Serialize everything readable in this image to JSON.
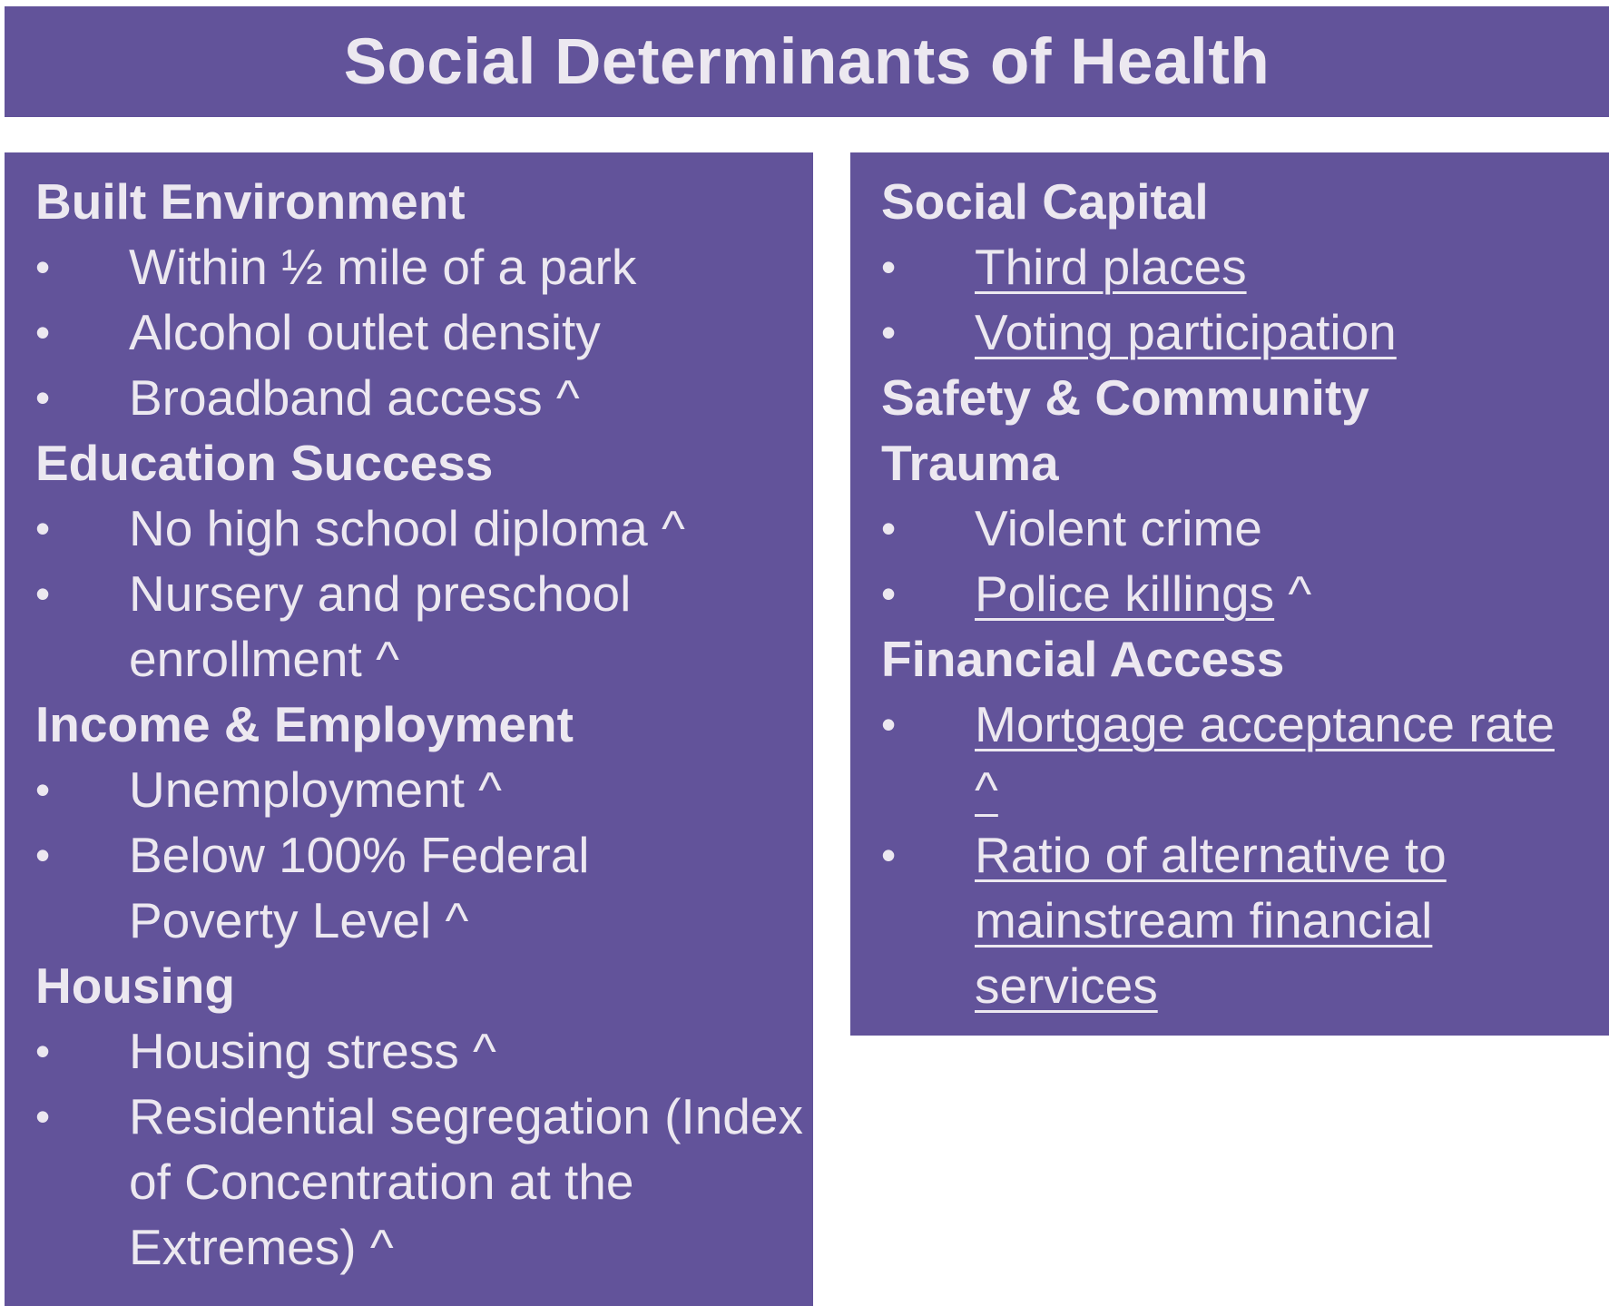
{
  "title": "Social Determinants of Health",
  "colors": {
    "panel": "#62539a",
    "text": "#ece8f0",
    "background": "#ffffff"
  },
  "bullet": "•",
  "left_column": {
    "sections": [
      {
        "heading": "Built Environment",
        "items": [
          {
            "text": "Within ½ mile of a park"
          },
          {
            "text": "Alcohol outlet density"
          },
          {
            "text": "Broadband access ^"
          }
        ]
      },
      {
        "heading": "Education Success",
        "items": [
          {
            "text": "No high school diploma ^"
          },
          {
            "text": "Nursery and preschool enrollment ^"
          }
        ]
      },
      {
        "heading": "Income & Employment",
        "items": [
          {
            "text": "Unemployment ^"
          },
          {
            "text": "Below 100% Federal Poverty Level ^"
          }
        ]
      },
      {
        "heading": "Housing",
        "items": [
          {
            "text": "Housing stress ^"
          },
          {
            "text": "Residential segregation (Index of Concentration at the Extremes) ^"
          }
        ]
      }
    ]
  },
  "right_column": {
    "sections": [
      {
        "heading": "Social Capital",
        "items": [
          {
            "link": "Third places",
            "suffix": ""
          },
          {
            "link": "Voting participation",
            "suffix": ""
          }
        ]
      },
      {
        "heading": "Safety & Community Trauma",
        "items": [
          {
            "text": "Violent crime"
          },
          {
            "link": "Police killings",
            "suffix": " ^"
          }
        ]
      },
      {
        "heading": "Financial Access",
        "items": [
          {
            "link": "Mortgage acceptance rate ^",
            "suffix": ""
          },
          {
            "link": "Ratio of alternative to mainstream financial services",
            "suffix": ""
          }
        ]
      }
    ]
  }
}
